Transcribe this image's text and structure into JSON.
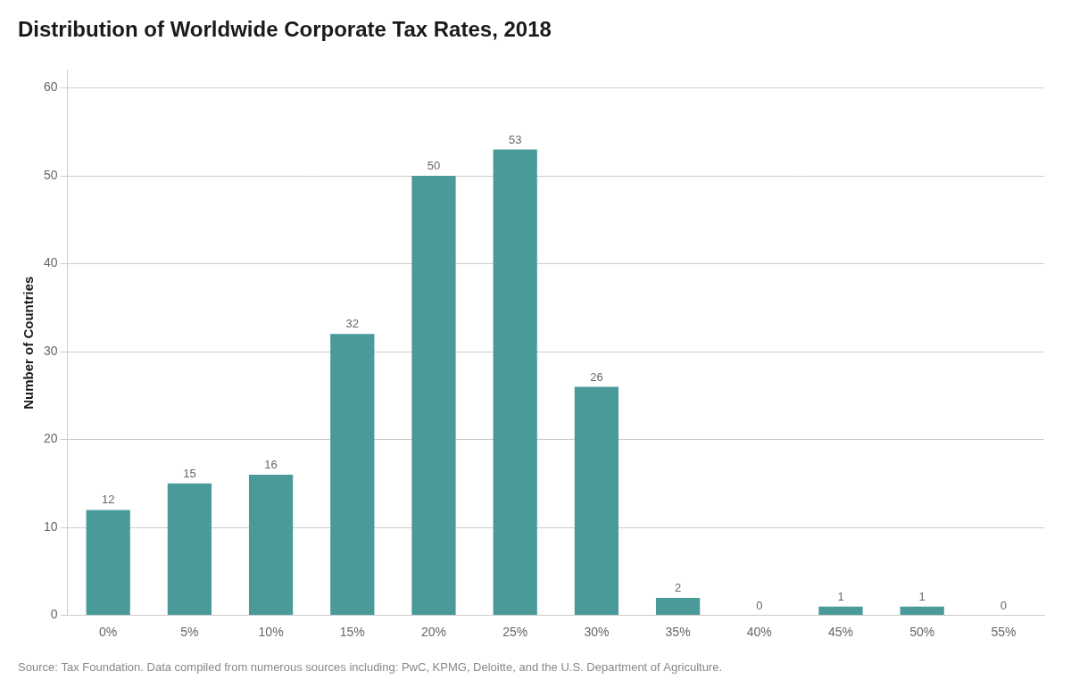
{
  "chart_data": {
    "type": "bar",
    "title": "Distribution of Worldwide Corporate Tax Rates, 2018",
    "ylabel": "Number of Countries",
    "source": "Source: Tax Foundation. Data compiled from numerous sources including: PwC, KPMG, Deloitte, and the U.S. Department of Agriculture.",
    "categories": [
      "0%",
      "5%",
      "10%",
      "15%",
      "20%",
      "25%",
      "30%",
      "35%",
      "40%",
      "45%",
      "50%",
      "55%"
    ],
    "values": [
      12,
      15,
      16,
      32,
      50,
      53,
      26,
      2,
      0,
      1,
      1,
      0
    ],
    "color": "#4a9a9a",
    "ylim": [
      0,
      62
    ],
    "yticks": [
      0,
      10,
      20,
      30,
      40,
      50,
      60
    ],
    "grid": true,
    "data_labels": true,
    "legend": false
  }
}
